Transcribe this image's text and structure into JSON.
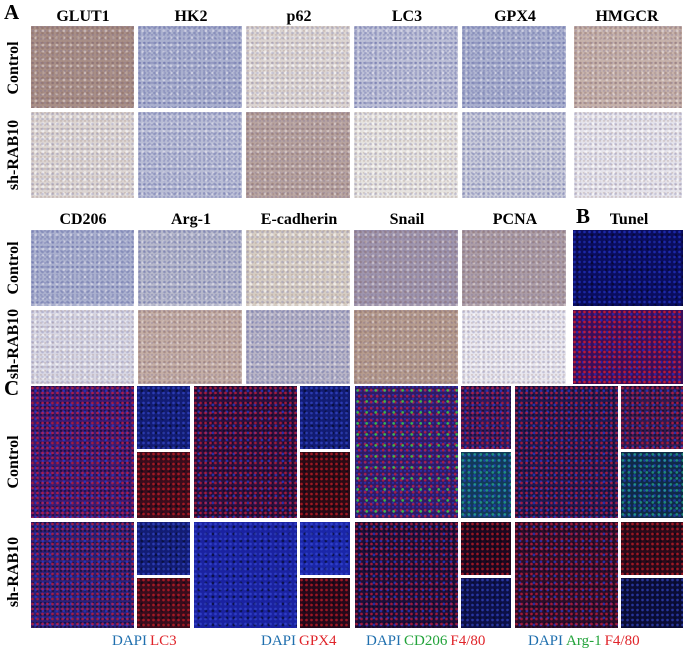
{
  "panels": {
    "a": "A",
    "b": "B",
    "c": "C"
  },
  "row_labels": {
    "control": "Control",
    "sh": "sh-RAB10"
  },
  "panel_a": {
    "top_markers": [
      "GLUT1",
      "HK2",
      "p62",
      "LC3",
      "GPX4",
      "HMGCR"
    ],
    "bottom_markers": [
      "CD206",
      "Arg-1",
      "E-cadherin",
      "Snail",
      "PCNA"
    ]
  },
  "panel_b": {
    "title": "Tunel"
  },
  "panel_c": {
    "legends": [
      [
        {
          "text": "DAPI",
          "color": "#1f6fae"
        },
        {
          "text": "LC3",
          "color": "#e0242a"
        }
      ],
      [
        {
          "text": "DAPI",
          "color": "#1f6fae"
        },
        {
          "text": "GPX4",
          "color": "#e0242a"
        }
      ],
      [
        {
          "text": "DAPI",
          "color": "#1f6fae"
        },
        {
          "text": "CD206",
          "color": "#22a33a"
        },
        {
          "text": "F4/80",
          "color": "#e0242a"
        }
      ],
      [
        {
          "text": "DAPI",
          "color": "#1f6fae"
        },
        {
          "text": "Arg-1",
          "color": "#22a33a"
        },
        {
          "text": "F4/80",
          "color": "#e0242a"
        }
      ]
    ]
  }
}
